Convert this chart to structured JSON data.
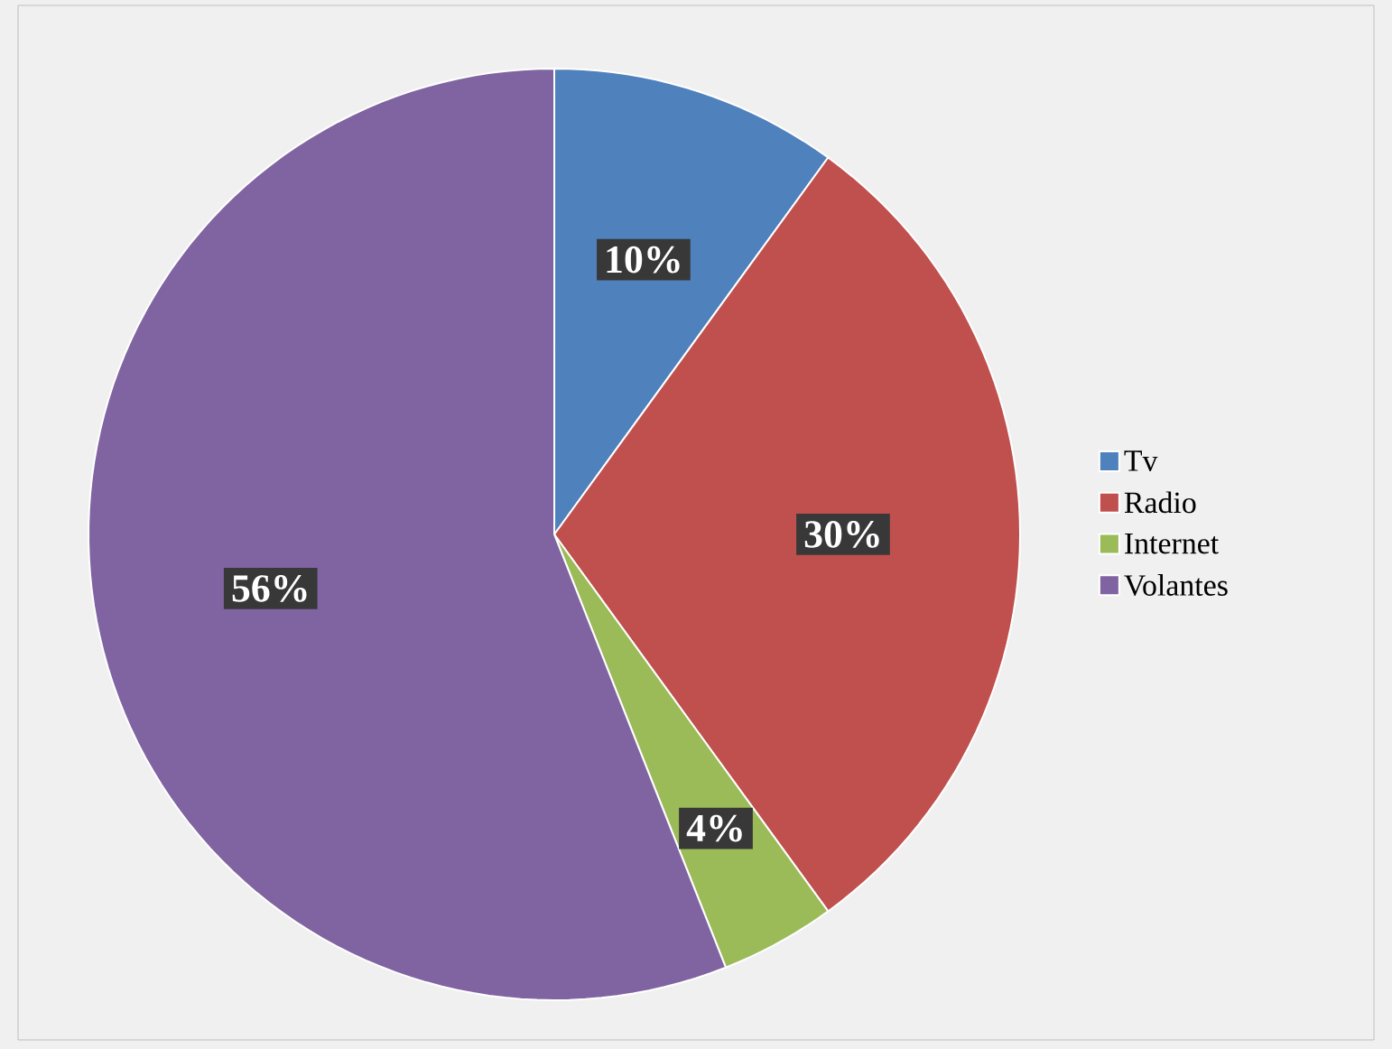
{
  "chart_data": {
    "type": "pie",
    "categories": [
      "Tv",
      "Radio",
      "Internet",
      "Volantes"
    ],
    "values": [
      10,
      30,
      4,
      56
    ],
    "colors": [
      "#4f81bd",
      "#c0504d",
      "#9bbb59",
      "#8064a2"
    ],
    "value_labels": [
      "10%",
      "30%",
      "4%",
      "56%"
    ],
    "legend": "right"
  }
}
